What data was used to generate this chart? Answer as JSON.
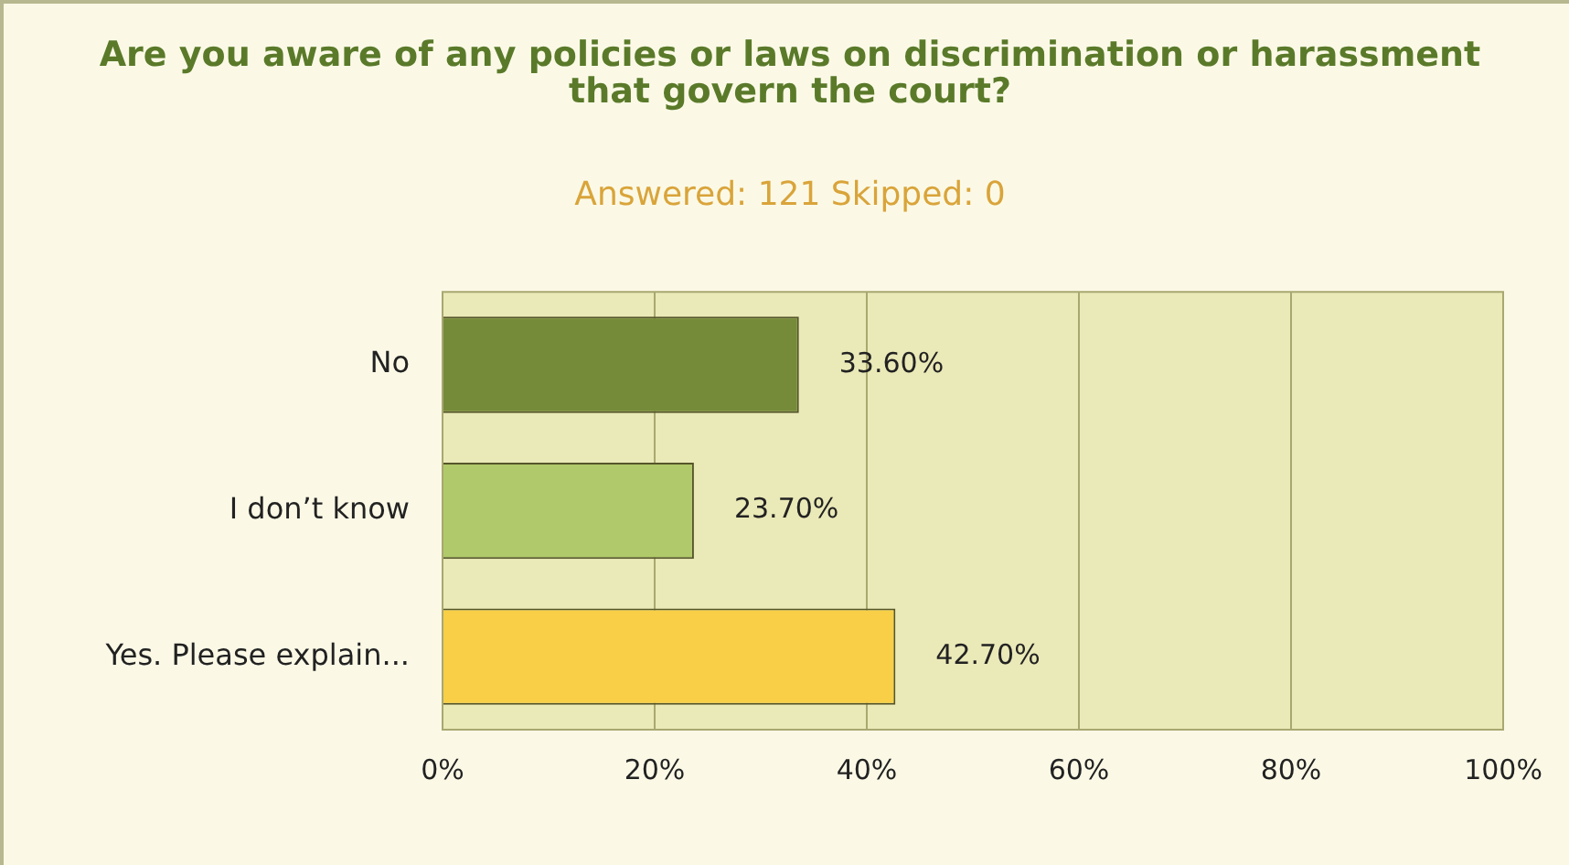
{
  "chart_data": {
    "type": "bar",
    "orientation": "horizontal",
    "title": "Are you aware of any policies or laws on discrimination or harassment that govern the court?",
    "subtitle": "Answered: 121 Skipped: 0",
    "categories": [
      "No",
      "I don’t know",
      "Yes. Please explain..."
    ],
    "values": [
      33.6,
      23.7,
      42.7
    ],
    "colors": [
      "#768b3a",
      "#b0c96a",
      "#f8cf46"
    ],
    "value_labels": [
      "33.60%",
      "23.70%",
      "42.70%"
    ],
    "xlim": [
      0,
      100
    ],
    "xticks": [
      {
        "value": 0,
        "label": "0%"
      },
      {
        "value": 20,
        "label": "20%"
      },
      {
        "value": 40,
        "label": "40%"
      },
      {
        "value": 60,
        "label": "60%"
      },
      {
        "value": 80,
        "label": "80%"
      },
      {
        "value": 100,
        "label": "100%"
      }
    ],
    "grid": "x",
    "legend": false
  }
}
